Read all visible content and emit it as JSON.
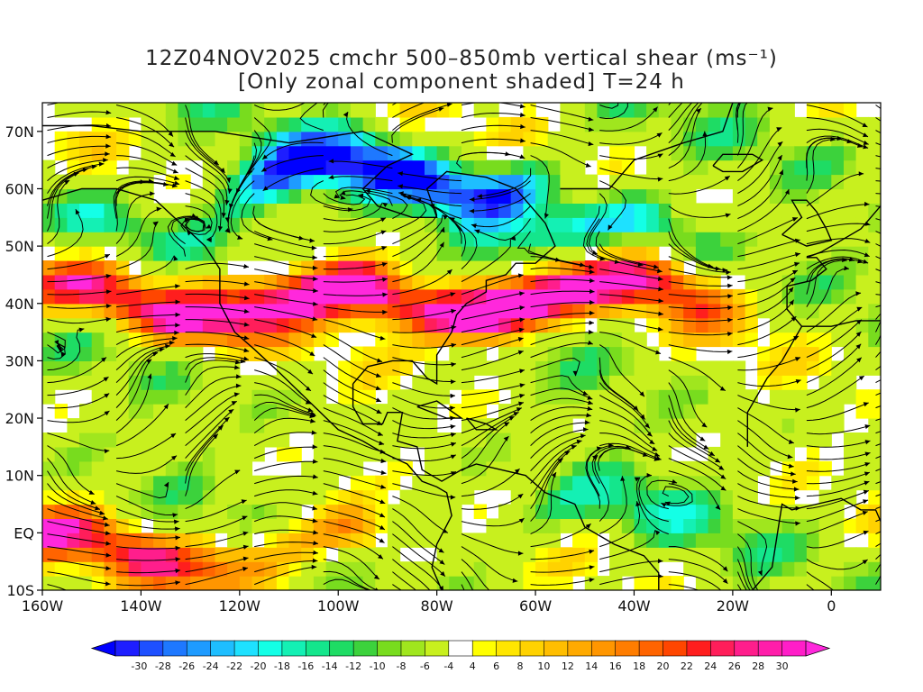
{
  "title": {
    "line1": "12Z04NOV2025 cmchr 500–850mb vertical shear (ms⁻¹)",
    "line2": "[Only zonal component shaded] T=24 h"
  },
  "chart_data": {
    "type": "heatmap",
    "title": "12Z04NOV2025 cmchr 500–850mb vertical shear (ms⁻¹) [Only zonal component shaded] T=24 h",
    "x_axis": {
      "range": [
        -160,
        10
      ],
      "ticks": [
        {
          "value": -160,
          "label": "160W"
        },
        {
          "value": -140,
          "label": "140W"
        },
        {
          "value": -120,
          "label": "120W"
        },
        {
          "value": -100,
          "label": "100W"
        },
        {
          "value": -80,
          "label": "80W"
        },
        {
          "value": -60,
          "label": "60W"
        },
        {
          "value": -40,
          "label": "40W"
        },
        {
          "value": -20,
          "label": "20W"
        },
        {
          "value": 0,
          "label": "0"
        }
      ]
    },
    "y_axis": {
      "range": [
        -10,
        75
      ],
      "ticks": [
        {
          "value": 70,
          "label": "70N"
        },
        {
          "value": 60,
          "label": "60N"
        },
        {
          "value": 50,
          "label": "50N"
        },
        {
          "value": 40,
          "label": "40N"
        },
        {
          "value": 30,
          "label": "30N"
        },
        {
          "value": 20,
          "label": "20N"
        },
        {
          "value": 10,
          "label": "10N"
        },
        {
          "value": 0,
          "label": "EQ"
        },
        {
          "value": -10,
          "label": "10S"
        }
      ]
    },
    "colorbar": {
      "labels": [
        "-30",
        "-28",
        "-26",
        "-24",
        "-22",
        "-20",
        "-18",
        "-16",
        "-14",
        "-12",
        "-10",
        "-8",
        "-6",
        "-4",
        "4",
        "6",
        "8",
        "10",
        "12",
        "14",
        "16",
        "18",
        "20",
        "22",
        "24",
        "26",
        "28",
        "30"
      ],
      "colors": [
        "#1e1eff",
        "#1e50ff",
        "#1e78ff",
        "#1e9bff",
        "#1ebeff",
        "#1ee1ff",
        "#14ffe6",
        "#14f0b4",
        "#14e68c",
        "#1edc64",
        "#3cd23c",
        "#78dc1e",
        "#a0e61e",
        "#c8f01e",
        "#ffffff",
        "#ffff00",
        "#ffe600",
        "#ffd200",
        "#ffbe00",
        "#ffaa00",
        "#ff9600",
        "#ff7d00",
        "#ff6400",
        "#ff4600",
        "#ff1e1e",
        "#ff1e5a",
        "#ff1e8c",
        "#ff1eaa",
        "#ff1ec8"
      ],
      "min_color": "#0000ff",
      "max_color": "#ff28dc",
      "units": "ms⁻¹"
    },
    "features": [
      {
        "name": "north-pacific-jet",
        "lat": 40,
        "lon_range": [
          -160,
          -105
        ],
        "value": 26
      },
      {
        "name": "us-east-jet",
        "lat": 40,
        "lon_range": [
          -90,
          -70
        ],
        "value": 28
      },
      {
        "name": "north-atlantic-jet",
        "lat": 42,
        "lon_range": [
          -65,
          -35
        ],
        "value": 24
      },
      {
        "name": "canada-easterly",
        "lat": 62,
        "lon_range": [
          -110,
          -70
        ],
        "value": -26
      },
      {
        "name": "labrador-easterly",
        "lat": 52,
        "lon_range": [
          -60,
          -40
        ],
        "value": -18
      },
      {
        "name": "alaska-gulf-easterly",
        "lat": 53,
        "lon_range": [
          -150,
          -135
        ],
        "value": -12
      },
      {
        "name": "equatorial-pacific-westerly",
        "lat": -3,
        "lon_range": [
          -160,
          -100
        ],
        "value": 20
      },
      {
        "name": "tropical-atlantic-easterly",
        "lat": 3,
        "lon_range": [
          -80,
          -40
        ],
        "value": -8
      }
    ]
  }
}
